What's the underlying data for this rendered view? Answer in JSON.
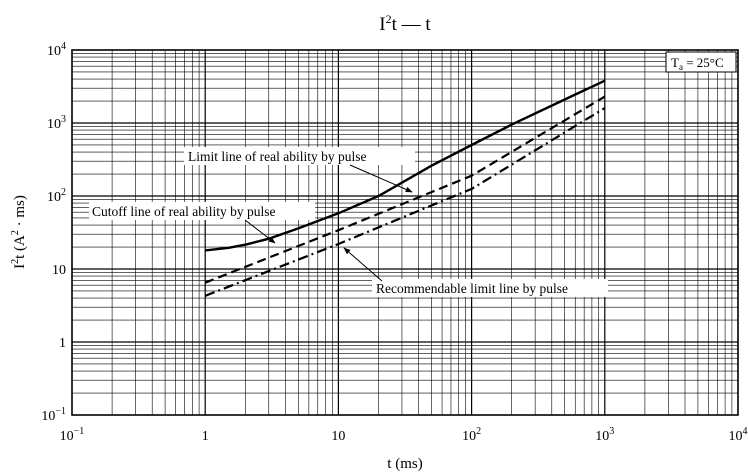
{
  "chart_data": {
    "type": "line",
    "title": {
      "main": "I",
      "sup": "2",
      "rest": "t — t"
    },
    "xlabel": "t  (ms)",
    "ylabel": {
      "main": "I",
      "sup": "2",
      "rest": "t  (A",
      "sup2": "2",
      "rest2": " · ms)"
    },
    "x_scale": "log",
    "y_scale": "log",
    "xlim": [
      0.1,
      10000
    ],
    "ylim": [
      0.1,
      10000
    ],
    "grid": true,
    "x_ticks": [
      {
        "base": "10",
        "exp": "−1"
      },
      {
        "base": "1",
        "exp": ""
      },
      {
        "base": "10",
        "exp": ""
      },
      {
        "base": "10",
        "exp": "2"
      },
      {
        "base": "10",
        "exp": "3"
      },
      {
        "base": "10",
        "exp": "4"
      }
    ],
    "y_ticks": [
      {
        "base": "10",
        "exp": "−1"
      },
      {
        "base": "1",
        "exp": ""
      },
      {
        "base": "10",
        "exp": ""
      },
      {
        "base": "10",
        "exp": "2"
      },
      {
        "base": "10",
        "exp": "3"
      },
      {
        "base": "10",
        "exp": "4"
      }
    ],
    "condition": {
      "main": "T",
      "sub": "a",
      "rest": " = 25°C"
    },
    "series": [
      {
        "name": "Limit line of real ability by pulse",
        "style": "solid",
        "x": [
          1,
          1.5,
          2,
          3,
          5,
          10,
          20,
          50,
          100,
          200,
          500,
          1000
        ],
        "y": [
          18,
          19.5,
          21.5,
          26,
          36,
          58,
          100,
          260,
          500,
          950,
          2100,
          3800
        ]
      },
      {
        "name": "Cutoff line of real ability by pulse",
        "style": "dashed",
        "x": [
          1,
          10,
          100,
          1000
        ],
        "y": [
          6.5,
          34,
          190,
          2300
        ]
      },
      {
        "name": "Recommendable limit line by pulse",
        "style": "dashdot",
        "x": [
          1,
          10,
          100,
          1000
        ],
        "y": [
          4.3,
          22,
          125,
          1600
        ]
      }
    ],
    "annotations": [
      {
        "text": "Limit line of real ability by pulse",
        "points_to_series": 0
      },
      {
        "text": "Cutoff line of real ability by pulse",
        "points_to_series": 1
      },
      {
        "text": "Recommendable limit line by pulse",
        "points_to_series": 2
      }
    ]
  }
}
